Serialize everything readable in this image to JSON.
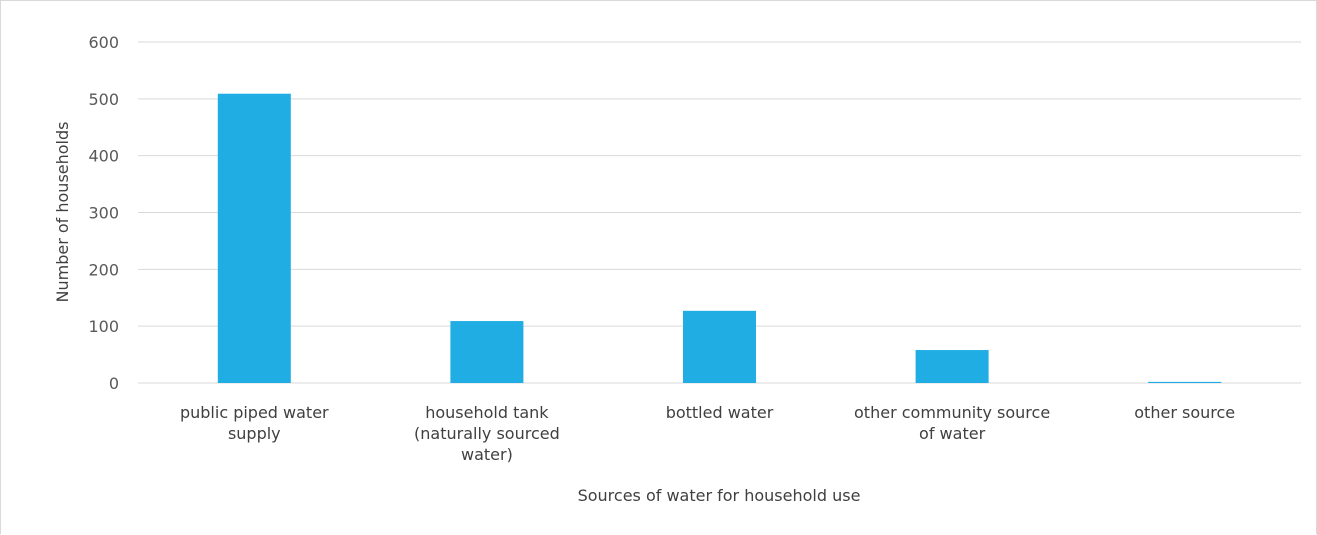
{
  "chart_data": {
    "type": "bar",
    "title": "",
    "xlabel": "Sources of water for household use",
    "ylabel": "Number of households",
    "categories": [
      [
        "public piped water",
        "supply"
      ],
      [
        "household tank",
        "(naturally sourced",
        "water)"
      ],
      [
        "bottled water"
      ],
      [
        "other community source",
        "of water"
      ],
      [
        "other source"
      ]
    ],
    "values": [
      509,
      109,
      127,
      58,
      2
    ],
    "ylim": [
      0,
      600
    ],
    "yticks": [
      0,
      100,
      200,
      300,
      400,
      500,
      600
    ],
    "grid": true,
    "legend": "none",
    "bar_color": "#1FADE4"
  }
}
